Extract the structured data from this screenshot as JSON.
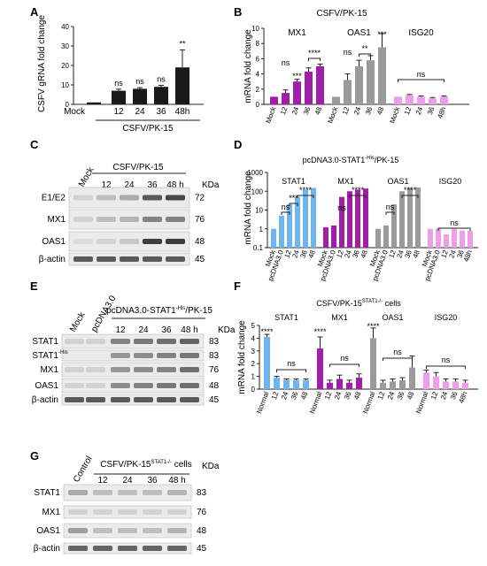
{
  "panels": {
    "A": {
      "letter": "A",
      "chart_data": {
        "type": "bar",
        "ylabel": "CSFV gRNA fold change",
        "group_label": "CSFV/PK-15",
        "categories": [
          "Mock",
          "12",
          "24",
          "36",
          "48h"
        ],
        "values": [
          1,
          7,
          8,
          9,
          19
        ],
        "errors": [
          0,
          0.8,
          0.6,
          0.8,
          9
        ],
        "ylim": [
          0,
          40
        ],
        "yticks": [
          "0",
          "10",
          "20",
          "30",
          "40"
        ],
        "sig": [
          "",
          "ns",
          "ns",
          "ns",
          "**"
        ],
        "color": "#1a1a1a"
      }
    },
    "B": {
      "letter": "B",
      "chart_data": {
        "type": "bar",
        "title": "CSFV/PK-15",
        "ylabel": "mRNA fold change",
        "ylim": [
          0,
          10
        ],
        "yticks": [
          "0",
          "2",
          "4",
          "6",
          "8",
          "10"
        ],
        "groups": [
          {
            "name": "MX1",
            "color": "#a11fa8",
            "categories": [
              "Mock",
              "12",
              "24",
              "36",
              "48"
            ],
            "values": [
              1.0,
              1.5,
              3.0,
              4.3,
              5.0
            ],
            "errors": [
              0,
              0.4,
              0.3,
              0.5,
              0.3
            ]
          },
          {
            "name": "OAS1",
            "color": "#9a9a9a",
            "categories": [
              "Mock",
              "12",
              "24",
              "36",
              "48"
            ],
            "values": [
              1.0,
              3.2,
              5.0,
              5.8,
              7.5
            ],
            "errors": [
              0,
              0.8,
              0.8,
              0.6,
              1.8
            ]
          },
          {
            "name": "ISG20",
            "color": "#ee9ee9",
            "categories": [
              "Mock",
              "12",
              "24",
              "36",
              "48h"
            ],
            "values": [
              1.0,
              1.2,
              1.0,
              0.8,
              1.0
            ],
            "errors": [
              0,
              0.1,
              0.1,
              0.1,
              0.1
            ]
          }
        ],
        "sig_labels": [
          "ns",
          "***",
          "****",
          "ns",
          "**",
          "***",
          "ns"
        ]
      }
    },
    "C": {
      "letter": "C",
      "blot_title": "CSFV/PK-15",
      "lanes": [
        "Mock",
        "12",
        "24",
        "36",
        "48 h"
      ],
      "unit": "KDa",
      "rows": [
        {
          "label": "E1/E2",
          "kda": "72"
        },
        {
          "label": "MX1",
          "kda": "76"
        },
        {
          "label": "OAS1",
          "kda": "48"
        },
        {
          "label": "β-actin",
          "kda": "45"
        }
      ]
    },
    "D": {
      "letter": "D",
      "chart_data": {
        "type": "bar",
        "title_pre": "pcDNA3.0-STAT1",
        "title_sup": "-His",
        "title_post": "/PK-15",
        "ylabel": "mRNA fold change",
        "scale": "log",
        "ylim": [
          0.1,
          1000
        ],
        "yticks": [
          "0.1",
          "1",
          "10",
          "100",
          "1000"
        ],
        "groups": [
          {
            "name": "STAT1",
            "color": "#6cb5ef",
            "categories": [
              "Mock",
              "pcDNA3.0",
              "12",
              "24",
              "36",
              "48"
            ],
            "values": [
              1,
              5,
              20,
              50,
              120,
              150
            ]
          },
          {
            "name": "MX1",
            "color": "#a11fa8",
            "categories": [
              "Mock",
              "pcDNA3.0",
              "12",
              "24",
              "36",
              "48"
            ],
            "values": [
              1.2,
              1.5,
              50,
              100,
              120,
              140
            ]
          },
          {
            "name": "OAS1",
            "color": "#9a9a9a",
            "categories": [
              "Mock",
              "pcDNA3.0",
              "12",
              "24",
              "36",
              "48"
            ],
            "values": [
              1,
              1.5,
              20,
              100,
              150,
              160
            ]
          },
          {
            "name": "ISG20",
            "color": "#ee9ee9",
            "categories": [
              "Mock",
              "pcDNA3.0",
              "12",
              "24",
              "36",
              "48h"
            ],
            "values": [
              1,
              1,
              0.5,
              1,
              0.8,
              0.8
            ]
          }
        ],
        "sig_labels": [
          "ns",
          "***",
          "****",
          "ns",
          "****",
          "ns",
          "****",
          "ns"
        ]
      }
    },
    "E": {
      "letter": "E",
      "blot_title_pre": "pcDNA3.0-STAT1",
      "blot_title_sup": "-His",
      "blot_title_post": "/PK-15",
      "lanes": [
        "Mock",
        "pcDNA3.0",
        "12",
        "24",
        "36",
        "48 h"
      ],
      "unit": "KDa",
      "rows": [
        {
          "label": "STAT1",
          "sup": "",
          "kda": "83"
        },
        {
          "label": "STAT1",
          "sup": "-His",
          "kda": "83"
        },
        {
          "label": "MX1",
          "sup": "",
          "kda": "76"
        },
        {
          "label": "OAS1",
          "sup": "",
          "kda": "48"
        },
        {
          "label": "β-actin",
          "sup": "",
          "kda": "45"
        }
      ]
    },
    "F": {
      "letter": "F",
      "chart_data": {
        "type": "bar",
        "title_pre": "CSFV/PK-15",
        "title_sup": "STAT1-/-",
        "title_post": " cells",
        "ylabel": "mRNA fold change",
        "ylim": [
          0,
          5
        ],
        "yticks": [
          "0",
          "1",
          "2",
          "3",
          "4",
          "5"
        ],
        "groups": [
          {
            "name": "STAT1",
            "color": "#6cb5ef",
            "categories": [
              "Normal",
              "12",
              "24",
              "36",
              "48"
            ],
            "values": [
              4.1,
              0.9,
              0.7,
              0.7,
              0.7
            ],
            "errors": [
              0.2,
              0.1,
              0.1,
              0.1,
              0.1
            ]
          },
          {
            "name": "MX1",
            "color": "#a11fa8",
            "categories": [
              "Normal",
              "12",
              "24",
              "36",
              "48"
            ],
            "values": [
              3.2,
              0.5,
              0.8,
              0.5,
              0.9
            ],
            "errors": [
              0.9,
              0.2,
              0.3,
              0.2,
              0.3
            ]
          },
          {
            "name": "OAS1",
            "color": "#9a9a9a",
            "categories": [
              "Normal",
              "12",
              "24",
              "36",
              "48"
            ],
            "values": [
              4.0,
              0.5,
              0.6,
              0.7,
              1.7
            ],
            "errors": [
              0.8,
              0.2,
              0.2,
              0.2,
              0.9
            ]
          },
          {
            "name": "ISG20",
            "color": "#ee9ee9",
            "categories": [
              "Normal",
              "12",
              "24",
              "36",
              "48h"
            ],
            "values": [
              1.3,
              1.0,
              0.6,
              0.6,
              0.5
            ],
            "errors": [
              0.2,
              0.3,
              0.2,
              0.2,
              0.2
            ]
          }
        ],
        "sig_labels": [
          "****",
          "ns",
          "****",
          "ns",
          "****",
          "ns",
          "ns"
        ]
      }
    },
    "G": {
      "letter": "G",
      "blot_title_pre": "CSFV/PK-15",
      "blot_title_sup": "STAT1-/-",
      "blot_title_post": " cells",
      "lanes": [
        "Control",
        "12",
        "24",
        "36",
        "48 h"
      ],
      "unit": "KDa",
      "rows": [
        {
          "label": "STAT1",
          "kda": "83"
        },
        {
          "label": "MX1",
          "kda": "76"
        },
        {
          "label": "OAS1",
          "kda": "48"
        },
        {
          "label": "β-actin",
          "kda": "45"
        }
      ]
    }
  }
}
